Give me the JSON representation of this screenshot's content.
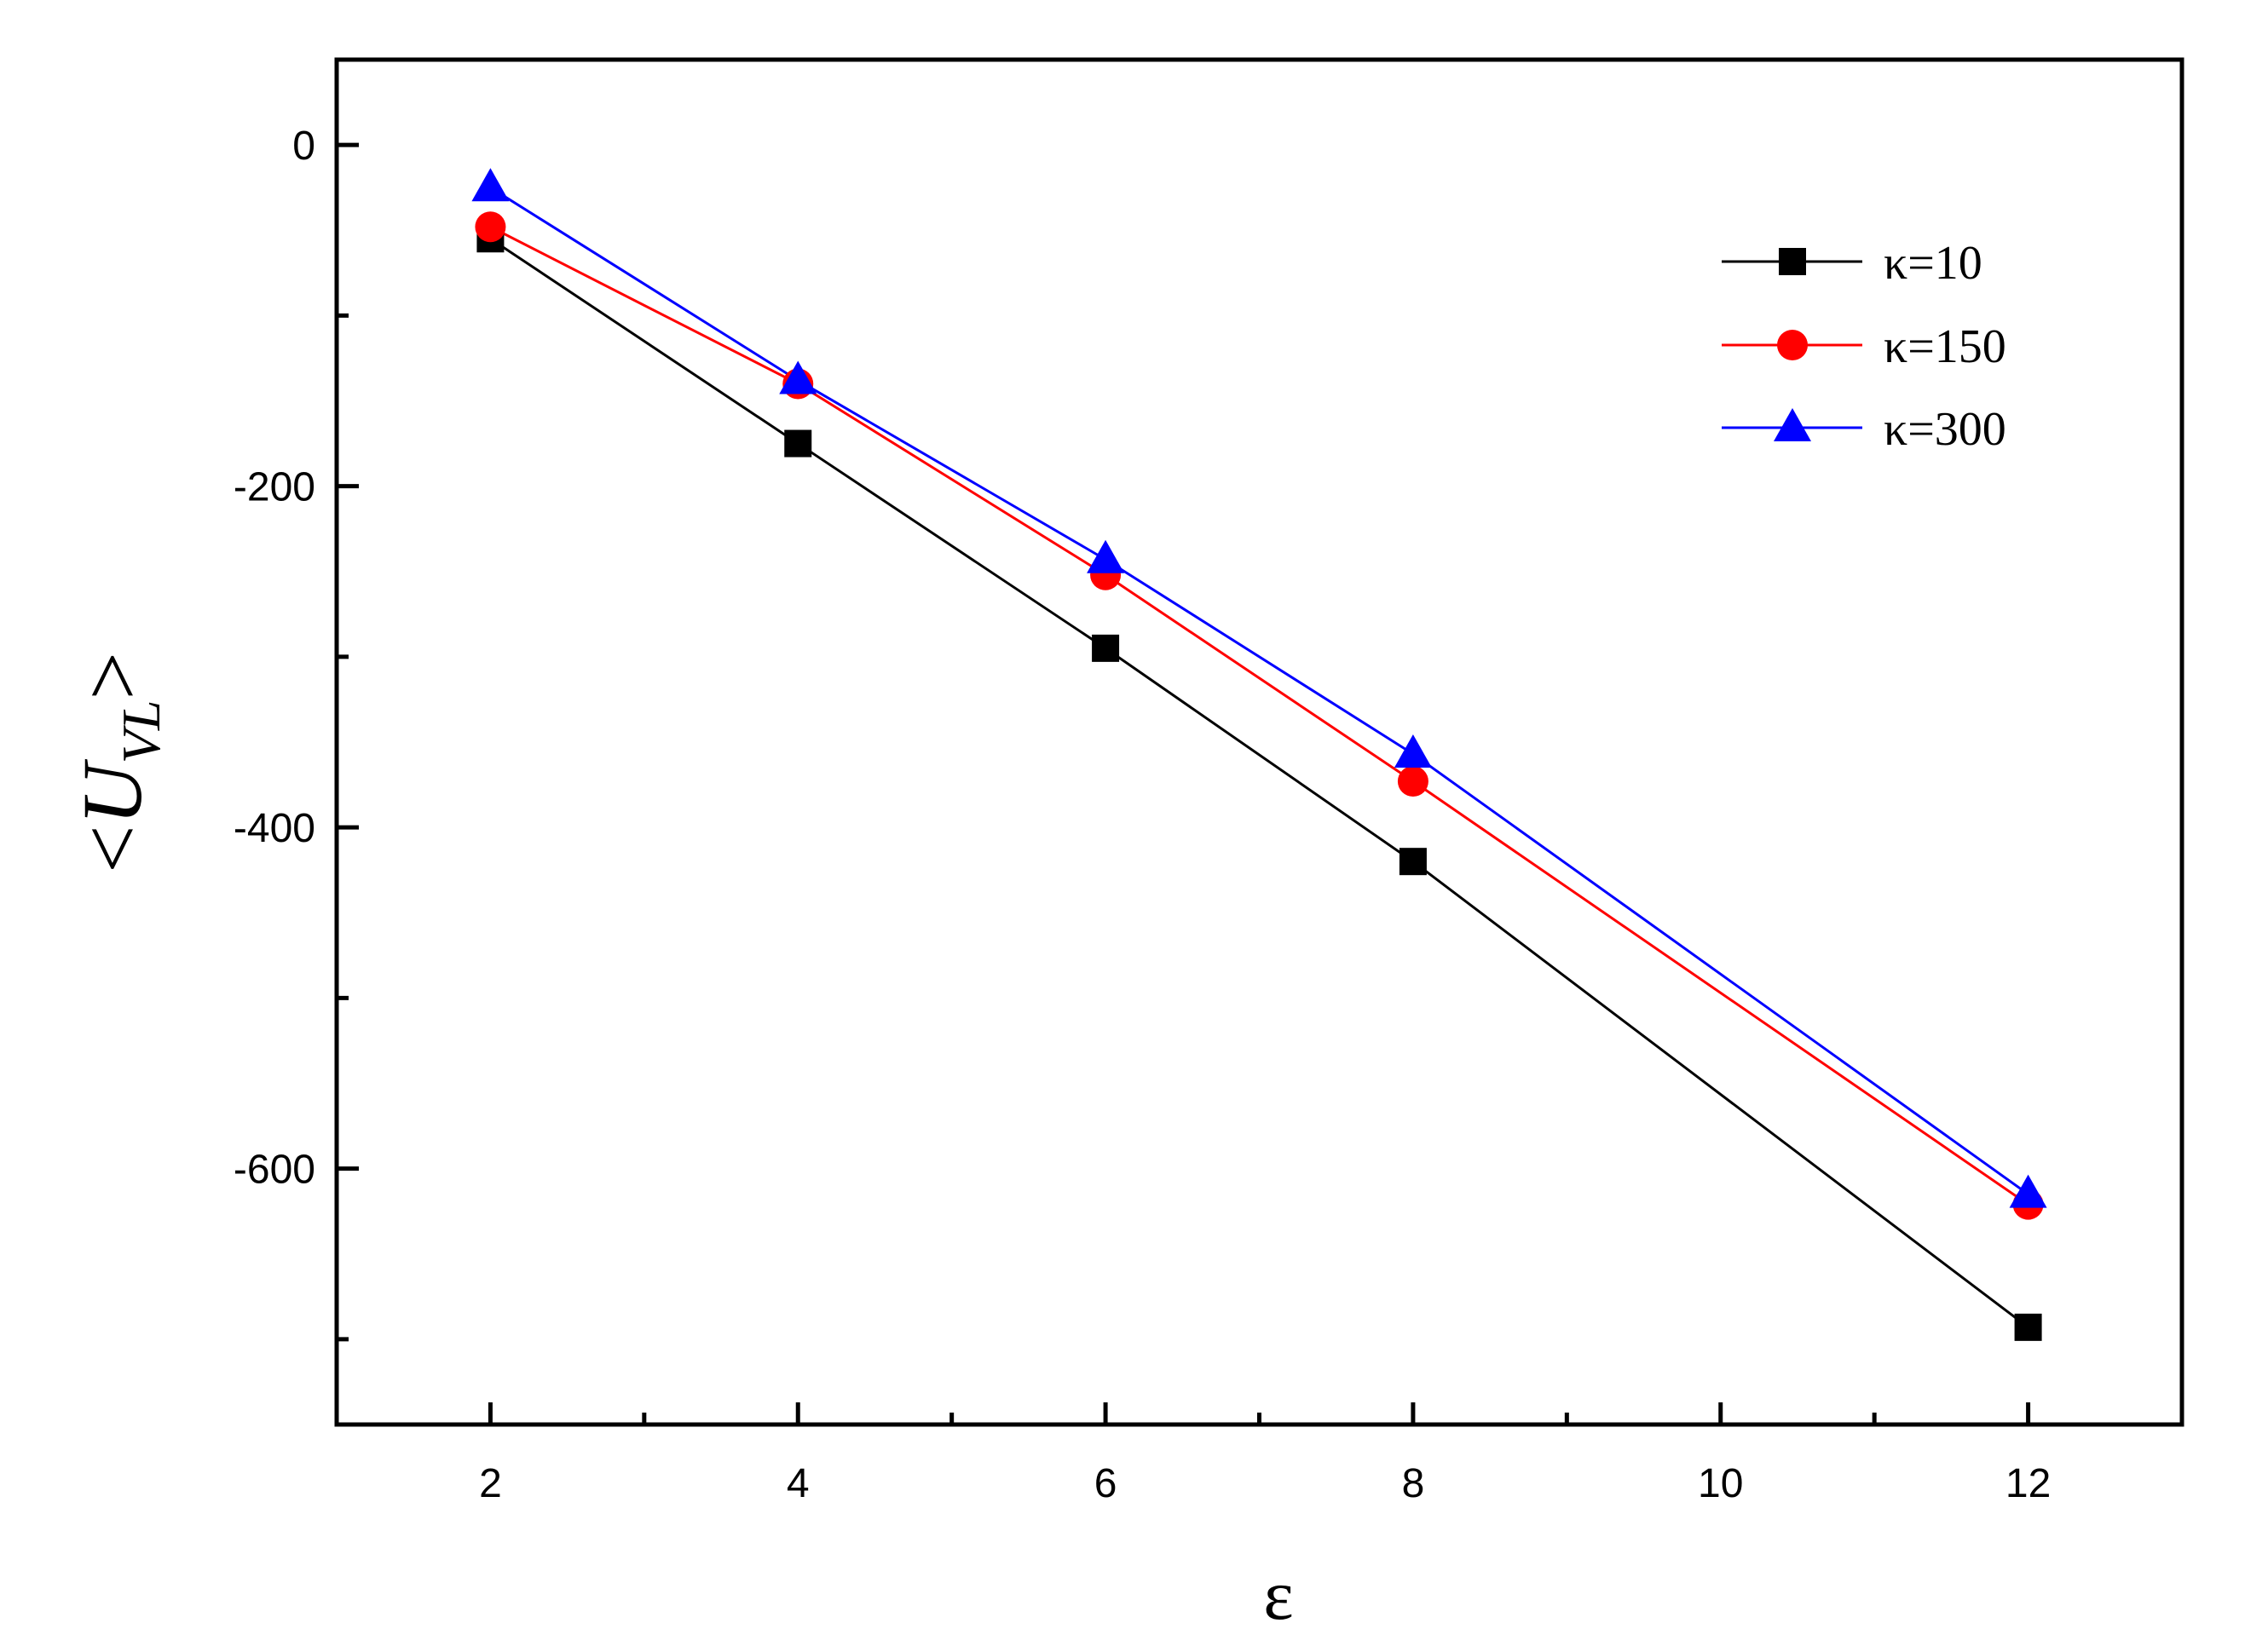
{
  "chart_data": {
    "type": "line",
    "xlabel": "ε",
    "ylabel": {
      "open": "<",
      "symbol": "U",
      "subscript": "VL",
      "close": ">"
    },
    "xlim": [
      1,
      13
    ],
    "ylim": [
      -750,
      50
    ],
    "x_ticks": [
      2,
      4,
      6,
      8,
      10,
      12
    ],
    "x_minor_ticks": [
      3,
      5,
      7,
      9,
      11
    ],
    "y_ticks": [
      0,
      -200,
      -400,
      -600
    ],
    "y_minor_ticks": [
      -100,
      -300,
      -500,
      -700
    ],
    "grid": false,
    "legend_position": "top-right",
    "series": [
      {
        "name": "κ=10",
        "color": "#000000",
        "marker": "square",
        "x": [
          2,
          4,
          6,
          8,
          12
        ],
        "y": [
          -55,
          -175,
          -295,
          -420,
          -693
        ]
      },
      {
        "name": "κ=150",
        "color": "#ff0000",
        "marker": "circle",
        "x": [
          2,
          4,
          6,
          8,
          12
        ],
        "y": [
          -48,
          -140,
          -252,
          -373,
          -621
        ]
      },
      {
        "name": "κ=300",
        "color": "#0000ff",
        "marker": "triangle",
        "x": [
          2,
          4,
          6,
          8,
          12
        ],
        "y": [
          -25,
          -138,
          -243,
          -357,
          -615
        ]
      }
    ]
  }
}
